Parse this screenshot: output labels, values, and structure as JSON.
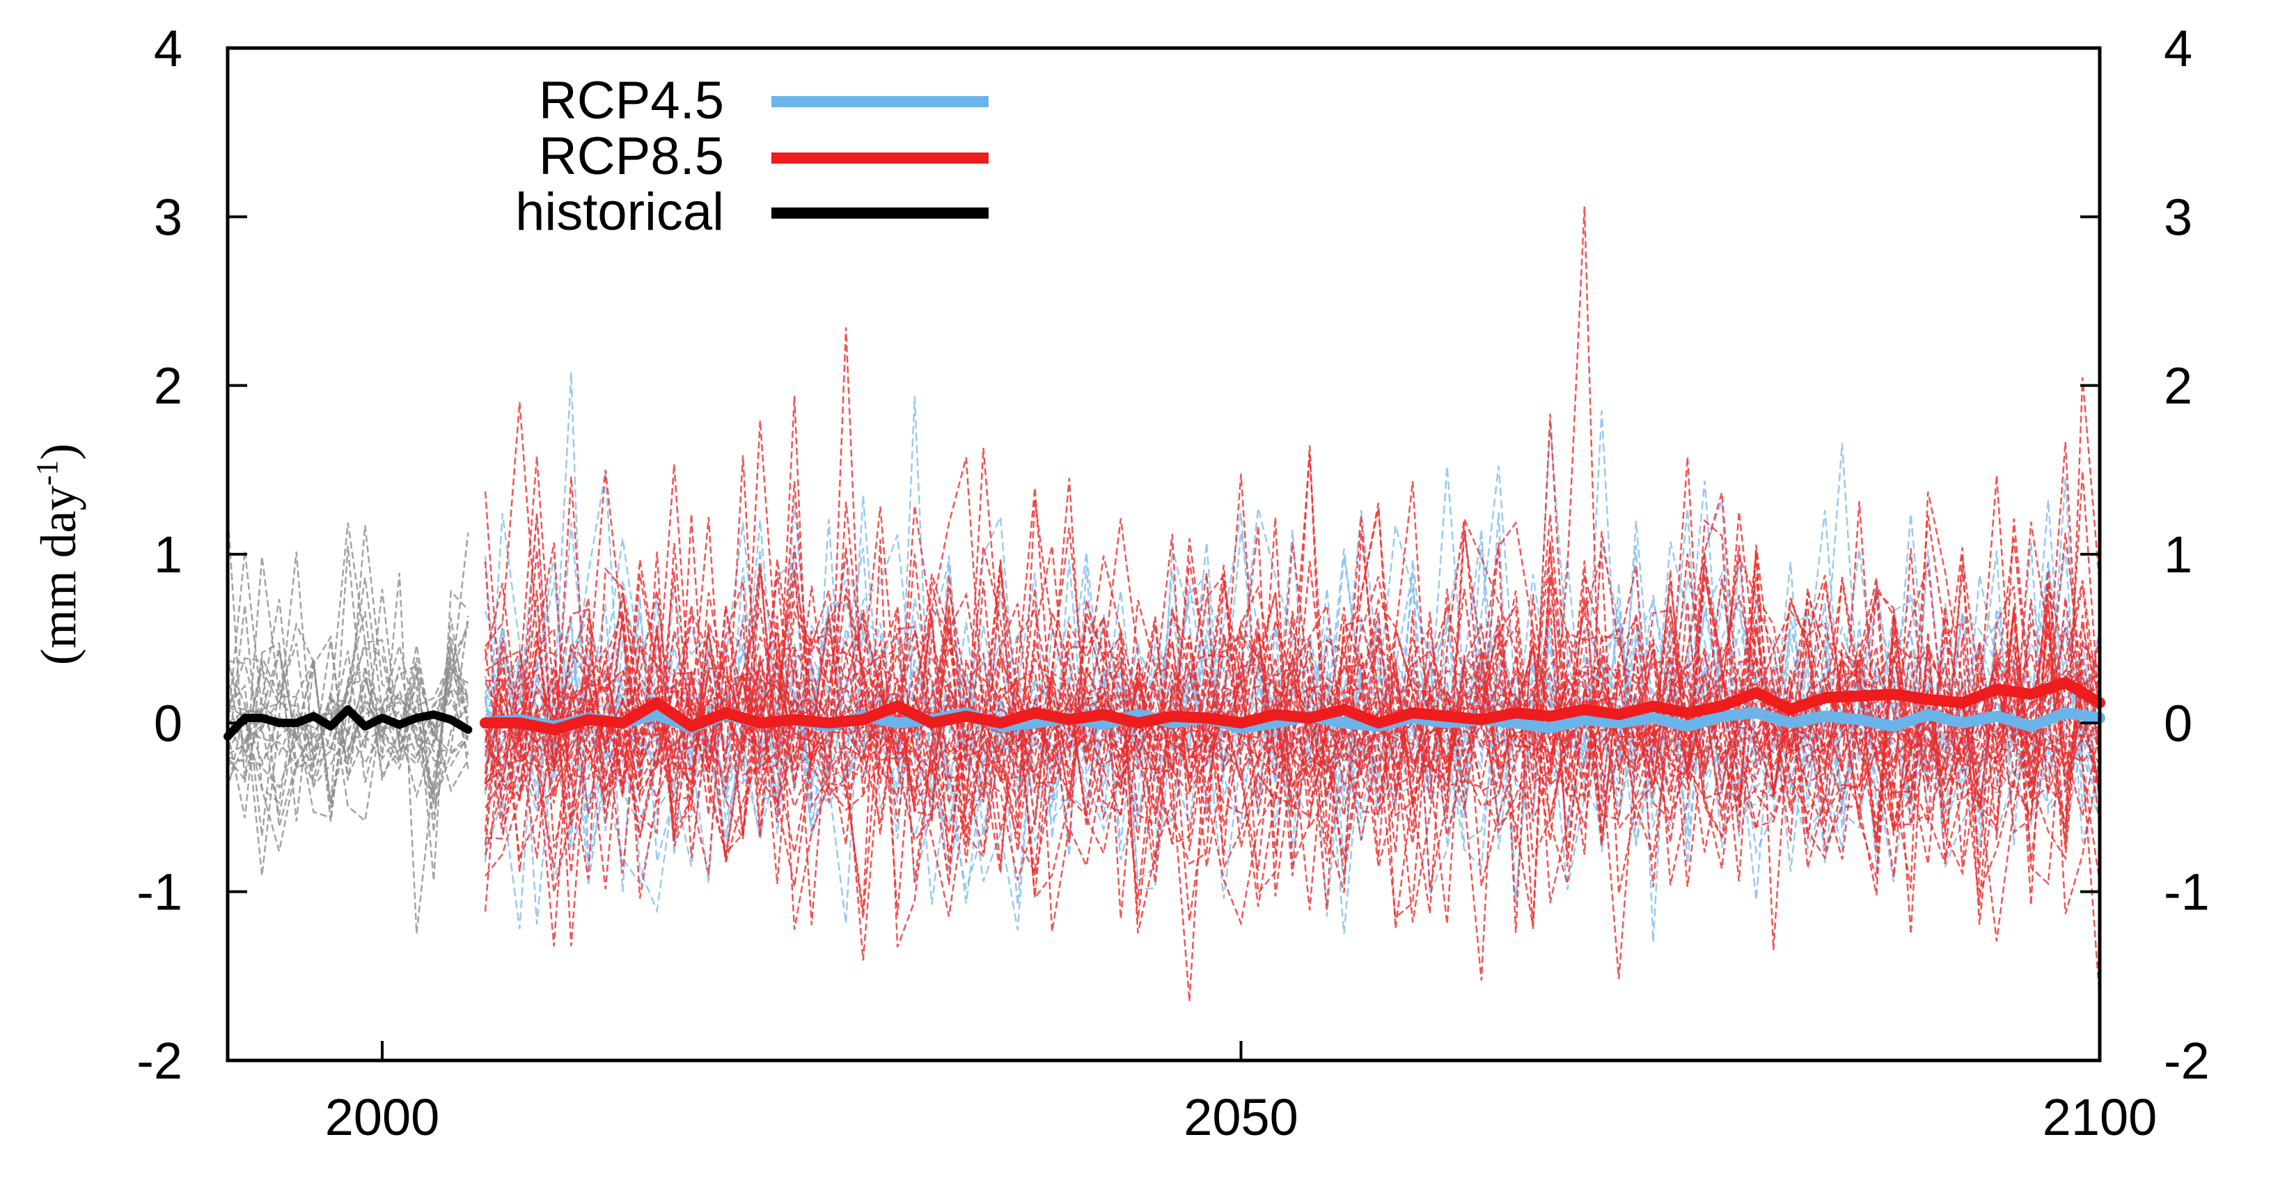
{
  "chart_data": {
    "type": "line",
    "title": "",
    "xlabel": "",
    "ylabel": "(mm day",
    "ylabel_superscript": "-1",
    "ylabel_suffix": ")",
    "xlim": [
      1991,
      2100
    ],
    "ylim": [
      -2,
      4
    ],
    "x_ticks": [
      2000,
      2050,
      2100
    ],
    "x_tick_labels": [
      "2000",
      "2050",
      "2100"
    ],
    "y_ticks": [
      4,
      3,
      2,
      1,
      0,
      -1,
      -2
    ],
    "y_tick_labels": [
      "4",
      "3",
      "2",
      "1",
      "0",
      "-1",
      "-2"
    ],
    "grid": false,
    "legend_position": "top-left",
    "legend": [
      {
        "name": "RCP4.5",
        "color": "#6ab4ea"
      },
      {
        "name": "RCP8.5",
        "color": "#ee1c1c"
      },
      {
        "name": "historical",
        "color": "#000000"
      }
    ],
    "series": [
      {
        "name": "historical",
        "color": "#000000",
        "x": [
          1991,
          1992,
          1993,
          1994,
          1995,
          1996,
          1997,
          1998,
          1999,
          2000,
          2001,
          2002,
          2003,
          2004,
          2005
        ],
        "values": [
          -0.08,
          0.03,
          0.03,
          0.0,
          0.0,
          0.04,
          -0.02,
          0.08,
          -0.02,
          0.03,
          -0.01,
          0.03,
          0.05,
          0.02,
          -0.04
        ]
      },
      {
        "name": "RCP4.5",
        "color": "#6ab4ea",
        "x": [
          2006,
          2008,
          2010,
          2012,
          2014,
          2016,
          2018,
          2020,
          2022,
          2024,
          2026,
          2028,
          2030,
          2032,
          2034,
          2036,
          2038,
          2040,
          2042,
          2044,
          2046,
          2048,
          2050,
          2052,
          2054,
          2056,
          2058,
          2060,
          2062,
          2064,
          2066,
          2068,
          2070,
          2072,
          2074,
          2076,
          2078,
          2080,
          2082,
          2084,
          2086,
          2088,
          2090,
          2092,
          2094,
          2096,
          2098,
          2100
        ],
        "values": [
          0.0,
          0.02,
          -0.02,
          0.03,
          0.0,
          0.05,
          -0.03,
          0.05,
          0.0,
          0.02,
          -0.02,
          0.04,
          0.0,
          0.02,
          0.06,
          -0.02,
          0.0,
          0.03,
          -0.01,
          0.05,
          0.0,
          0.03,
          -0.03,
          0.0,
          0.04,
          0.0,
          -0.02,
          0.03,
          0.0,
          0.02,
          0.0,
          -0.03,
          0.02,
          0.0,
          0.03,
          -0.02,
          0.04,
          0.06,
          0.0,
          0.04,
          0.02,
          -0.02,
          0.05,
          0.0,
          0.04,
          -0.02,
          0.06,
          0.03
        ]
      },
      {
        "name": "RCP8.5",
        "color": "#ee1c1c",
        "x": [
          2006,
          2008,
          2010,
          2012,
          2014,
          2016,
          2018,
          2020,
          2022,
          2024,
          2026,
          2028,
          2030,
          2032,
          2034,
          2036,
          2038,
          2040,
          2042,
          2044,
          2046,
          2048,
          2050,
          2052,
          2054,
          2056,
          2058,
          2060,
          2062,
          2064,
          2066,
          2068,
          2070,
          2072,
          2074,
          2076,
          2078,
          2080,
          2082,
          2084,
          2086,
          2088,
          2090,
          2092,
          2094,
          2096,
          2098,
          2100
        ],
        "values": [
          0.0,
          0.0,
          -0.04,
          0.02,
          0.0,
          0.12,
          -0.02,
          0.06,
          0.0,
          0.02,
          0.0,
          0.02,
          0.1,
          0.0,
          0.04,
          0.0,
          0.06,
          0.02,
          0.05,
          0.0,
          0.04,
          0.03,
          0.0,
          0.05,
          0.03,
          0.08,
          0.0,
          0.06,
          0.04,
          0.02,
          0.06,
          0.04,
          0.08,
          0.05,
          0.1,
          0.06,
          0.1,
          0.18,
          0.08,
          0.15,
          0.16,
          0.17,
          0.14,
          0.12,
          0.2,
          0.17,
          0.24,
          0.12
        ]
      }
    ]
  }
}
